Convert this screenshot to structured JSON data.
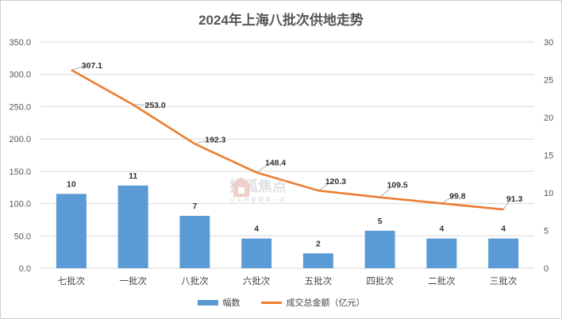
{
  "chart_data": {
    "type": "bar",
    "title": "2024年上海八批次供地走势",
    "categories": [
      "七批次",
      "一批次",
      "八批次",
      "六批次",
      "五批次",
      "四批次",
      "二批次",
      "三批次"
    ],
    "series": [
      {
        "name": "幅数",
        "type": "bar",
        "axis": "left",
        "color": "#5b9bd5",
        "values": [
          115,
          128,
          81,
          46,
          23,
          58,
          46,
          46
        ],
        "labels": [
          "10",
          "11",
          "7",
          "4",
          "2",
          "5",
          "4",
          "4"
        ]
      },
      {
        "name": "成交总金额（亿元）",
        "type": "line",
        "axis": "right",
        "color": "#ed7d31",
        "values": [
          26.3,
          21.7,
          16.5,
          12.7,
          10.3,
          9.4,
          8.6,
          7.8
        ],
        "labels": [
          "307.1",
          "253.0",
          "192.3",
          "148.4",
          "120.3",
          "109.5",
          "99.8",
          "91.3"
        ]
      }
    ],
    "y_left": {
      "ylim": [
        0,
        350
      ],
      "ticks": [
        "0.0",
        "50.0",
        "100.0",
        "150.0",
        "200.0",
        "250.0",
        "300.0",
        "350.0"
      ]
    },
    "y_right": {
      "ylim": [
        0,
        30
      ],
      "ticks": [
        "0",
        "5",
        "10",
        "15",
        "20",
        "25",
        "30"
      ]
    },
    "grid": true,
    "legend": "bottom"
  },
  "watermark": {
    "text": "搜狐焦点",
    "sub": "让买房更简单一点"
  },
  "colors": {
    "bar": "#5b9bd5",
    "line": "#ed7d31",
    "grid": "#d9d9d9"
  }
}
